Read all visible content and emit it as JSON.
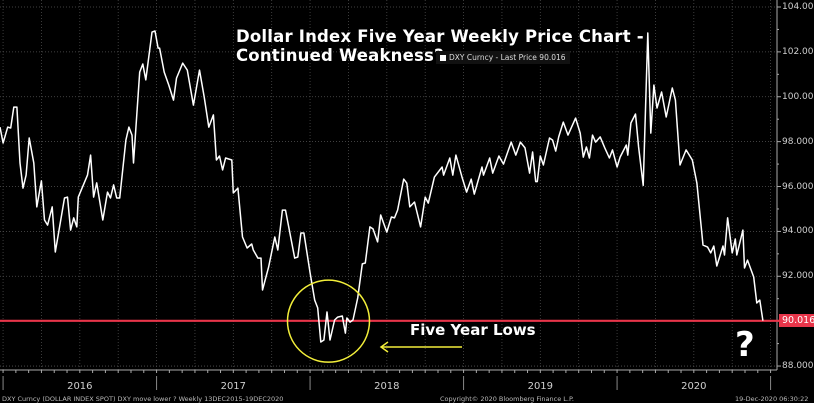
{
  "chart_data": {
    "type": "line",
    "title": "Dollar Index Five Year Weekly Price Chart -",
    "subtitle": "Continued Weakness?",
    "legend": {
      "label": "DXY Curncy - Last Price 90.016",
      "placement": "top-center"
    },
    "last_price_label": "90.016",
    "last_price": 90.016,
    "ylim": [
      88,
      104
    ],
    "yticks": [
      "104.000",
      "102.000",
      "100.000",
      "98.000",
      "96.000",
      "94.000",
      "92.000",
      "90.000",
      "88.000"
    ],
    "ytick_values": [
      104,
      102,
      100,
      98,
      96,
      94,
      92,
      90,
      88
    ],
    "xlim": [
      2015.95,
      2021.0
    ],
    "xlabels": [
      "2016",
      "2017",
      "2018",
      "2019",
      "2020"
    ],
    "xlabel_positions": [
      2016.5,
      2017.5,
      2018.5,
      2019.5,
      2020.5
    ],
    "grid": true,
    "series": [
      {
        "name": "DXY Curncy",
        "color": "#ffffff",
        "x": [
          2015.98,
          2016.0,
          2016.03,
          2016.05,
          2016.07,
          2016.09,
          2016.11,
          2016.13,
          2016.15,
          2016.17,
          2016.2,
          2016.22,
          2016.25,
          2016.27,
          2016.29,
          2016.32,
          2016.34,
          2016.4,
          2016.42,
          2016.44,
          2016.46,
          2016.48,
          2016.49,
          2016.55,
          2016.57,
          2016.59,
          2016.61,
          2016.65,
          2016.68,
          2016.7,
          2016.72,
          2016.74,
          2016.76,
          2016.8,
          2016.82,
          2016.84,
          2016.85,
          2016.89,
          2016.91,
          2016.93,
          2016.97,
          2016.99,
          2017.01,
          2017.02,
          2017.05,
          2017.08,
          2017.11,
          2017.13,
          2017.17,
          2017.2,
          2017.24,
          2017.28,
          2017.31,
          2017.34,
          2017.37,
          2017.39,
          2017.41,
          2017.43,
          2017.45,
          2017.49,
          2017.5,
          2017.53,
          2017.56,
          2017.59,
          2017.62,
          2017.63,
          2017.66,
          2017.68,
          2017.69,
          2017.73,
          2017.77,
          2017.79,
          2017.82,
          2017.84,
          2017.9,
          2017.92,
          2017.94,
          2017.96,
          2018.0,
          2018.03,
          2018.05,
          2018.07,
          2018.09,
          2018.11,
          2018.13,
          2018.16,
          2018.18,
          2018.21,
          2018.23,
          2018.24,
          2018.26,
          2018.28,
          2018.31,
          2018.34,
          2018.36,
          2018.39,
          2018.41,
          2018.44,
          2018.46,
          2018.5,
          2018.53,
          2018.55,
          2018.57,
          2018.61,
          2018.63,
          2018.65,
          2018.68,
          2018.72,
          2018.75,
          2018.77,
          2018.81,
          2018.86,
          2018.87,
          2018.91,
          2018.93,
          2018.95,
          2018.99,
          2019.02,
          2019.05,
          2019.07,
          2019.12,
          2019.13,
          2019.17,
          2019.19,
          2019.23,
          2019.26,
          2019.31,
          2019.34,
          2019.37,
          2019.4,
          2019.43,
          2019.45,
          2019.47,
          2019.48,
          2019.5,
          2019.52,
          2019.56,
          2019.58,
          2019.6,
          2019.62,
          2019.65,
          2019.68,
          2019.73,
          2019.76,
          2019.78,
          2019.8,
          2019.82,
          2019.84,
          2019.86,
          2019.89,
          2019.92,
          2019.95,
          2019.97,
          2020.0,
          2020.02,
          2020.06,
          2020.07,
          2020.09,
          2020.12,
          2020.14,
          2020.17,
          2020.2,
          2020.22,
          2020.24,
          2020.26,
          2020.29,
          2020.32,
          2020.36,
          2020.38,
          2020.41,
          2020.45,
          2020.49,
          2020.52,
          2020.56,
          2020.59,
          2020.61,
          2020.63,
          2020.65,
          2020.69,
          2020.7,
          2020.72,
          2020.75,
          2020.77,
          2020.78,
          2020.82,
          2020.83,
          2020.85,
          2020.89,
          2020.91,
          2020.93,
          2020.95
        ],
        "y": [
          98.65,
          97.94,
          98.65,
          98.61,
          99.54,
          99.54,
          97.05,
          95.93,
          96.51,
          98.16,
          97.05,
          95.09,
          96.25,
          94.51,
          94.28,
          95.09,
          93.08,
          95.49,
          95.53,
          94.06,
          94.6,
          94.2,
          95.53,
          96.51,
          97.4,
          95.53,
          96.16,
          94.51,
          95.75,
          95.49,
          96.07,
          95.49,
          95.49,
          98.07,
          98.65,
          98.29,
          97.05,
          101.1,
          101.46,
          100.75,
          102.88,
          102.93,
          102.17,
          102.17,
          101.1,
          100.52,
          99.85,
          100.83,
          101.5,
          101.19,
          99.63,
          101.19,
          99.99,
          98.65,
          99.19,
          97.18,
          97.36,
          96.74,
          97.27,
          97.18,
          95.71,
          95.93,
          93.75,
          93.26,
          93.44,
          93.17,
          92.81,
          92.81,
          91.39,
          92.41,
          93.75,
          93.17,
          94.95,
          94.95,
          92.81,
          92.86,
          93.93,
          93.93,
          92.15,
          90.94,
          90.59,
          89.07,
          89.16,
          90.41,
          89.16,
          90.05,
          90.18,
          90.23,
          89.47,
          90.14,
          89.96,
          90.05,
          91.03,
          92.55,
          92.59,
          94.2,
          94.11,
          93.53,
          94.73,
          93.97,
          94.64,
          94.6,
          94.95,
          96.33,
          96.15,
          95.09,
          95.31,
          94.2,
          95.53,
          95.26,
          96.42,
          96.87,
          96.51,
          97.27,
          96.51,
          97.4,
          96.42,
          95.75,
          96.33,
          95.66,
          96.87,
          96.51,
          97.27,
          96.6,
          97.36,
          97.0,
          97.98,
          97.4,
          97.98,
          97.72,
          96.6,
          97.54,
          96.22,
          96.22,
          97.36,
          96.96,
          98.16,
          98.07,
          97.58,
          98.21,
          98.87,
          98.29,
          99.05,
          98.38,
          97.31,
          97.76,
          97.27,
          98.29,
          97.98,
          98.21,
          97.72,
          97.27,
          97.63,
          96.87,
          97.31,
          97.85,
          97.4,
          98.83,
          99.23,
          97.76,
          96.05,
          102.84,
          98.38,
          100.52,
          99.5,
          100.21,
          99.1,
          100.39,
          99.85,
          96.96,
          97.63,
          97.18,
          96.15,
          93.39,
          93.3,
          93.04,
          93.35,
          92.46,
          93.35,
          92.95,
          94.6,
          93.04,
          93.66,
          92.95,
          94.06,
          92.37,
          92.72,
          91.97,
          90.81,
          90.94,
          90.02
        ]
      }
    ],
    "annotations": {
      "five_year_lows_label": "Five Year Lows",
      "question_mark": "?",
      "circle_center": {
        "x": 2018.12,
        "y": 90.0
      },
      "circle_color": "#f2ee3a",
      "arrow_color": "#f2ee3a",
      "reference_line": {
        "value": 90.016,
        "color": "#e8354a"
      }
    },
    "footer": {
      "left": "DXY Curncy (DOLLAR INDEX SPOT) DXY move lower ?  Weekly 13DEC2015-19DEC2020",
      "center": "Copyright© 2020 Bloomberg Finance L.P.",
      "right": "19-Dec-2020 06:30:22"
    }
  }
}
